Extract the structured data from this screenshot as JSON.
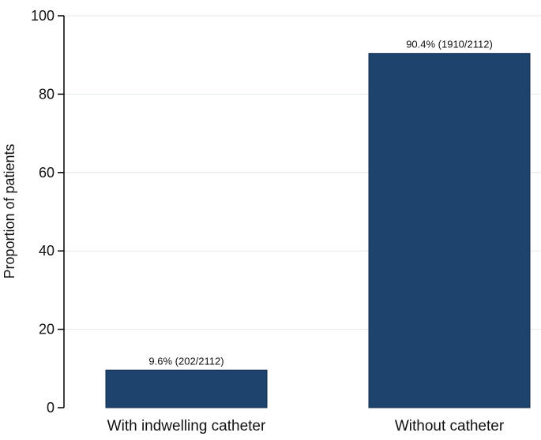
{
  "chart_data": {
    "type": "bar",
    "title": "",
    "xlabel": "",
    "ylabel": "Proportion of patients",
    "categories": [
      "With indwelling catheter",
      "Without catheter"
    ],
    "values": [
      9.6,
      90.4
    ],
    "data_labels": [
      "9.6% (202/2112)",
      "90.4% (1910/2112)"
    ],
    "ylim": [
      0,
      100
    ],
    "yticks": [
      0,
      20,
      40,
      60,
      80,
      100
    ],
    "grid": true,
    "legend": "none",
    "colors": {
      "bar": "#1c446d",
      "grid": "#e3ece9",
      "axis": "#000000",
      "text": "#111111",
      "background": "#ffffff"
    }
  }
}
